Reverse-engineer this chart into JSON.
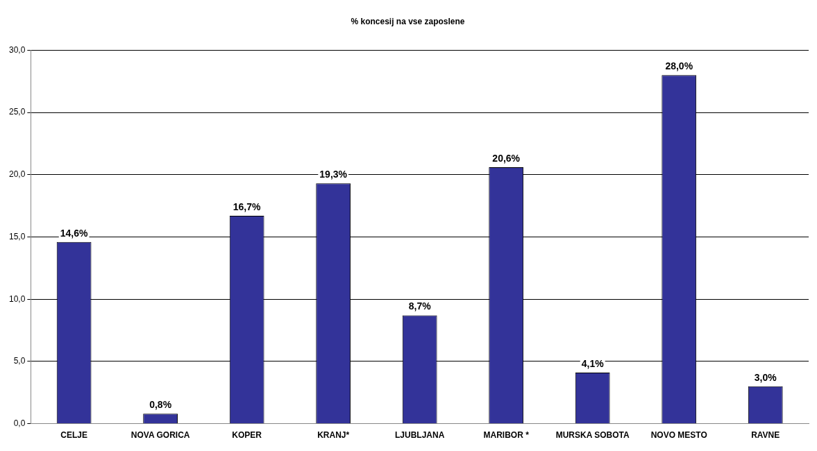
{
  "chart_data": {
    "type": "bar",
    "title": "% koncesij na vse zaposlene",
    "categories": [
      "CELJE",
      "NOVA GORICA",
      "KOPER",
      "KRANJ*",
      "LJUBLJANA",
      "MARIBOR *",
      "MURSKA SOBOTA",
      "NOVO MESTO",
      "RAVNE"
    ],
    "values": [
      14.6,
      0.8,
      16.7,
      19.3,
      8.7,
      20.6,
      4.1,
      28.0,
      3.0
    ],
    "value_labels": [
      "14,6%",
      "0,8%",
      "16,7%",
      "19,3%",
      "8,7%",
      "20,6%",
      "4,1%",
      "28,0%",
      "3,0%"
    ],
    "color": "#333399",
    "ylim": [
      0,
      30
    ],
    "yticks": [
      {
        "value": 0,
        "label": "0,0"
      },
      {
        "value": 5,
        "label": "5,0"
      },
      {
        "value": 10,
        "label": "10,0"
      },
      {
        "value": 15,
        "label": "15,0"
      },
      {
        "value": 20,
        "label": "20,0"
      },
      {
        "value": 25,
        "label": "25,0"
      },
      {
        "value": 30,
        "label": "30,0"
      }
    ],
    "grid": "y",
    "legend": false
  }
}
